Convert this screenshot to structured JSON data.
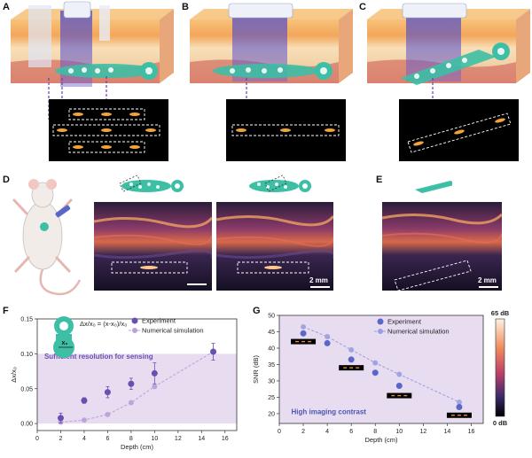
{
  "panels": {
    "A": "A",
    "B": "B",
    "C": "C",
    "D": "D",
    "E": "E",
    "F": "F",
    "G": "G"
  },
  "scale_bars": {
    "d1": "2 mm",
    "e1": "2 mm"
  },
  "colors": {
    "skin_top": "#f3b56a",
    "skin_mid": "#f7d9ad",
    "tissue": "#e9c6a6",
    "muscle": "#d7877a",
    "probe_beam": "#5b55c9",
    "patch": "#3dbfa5",
    "dashed_box": "#ffffff",
    "arrow": "#6a3fa6",
    "highlight_fill": "#e4d6ef",
    "experiment": "#6a4fb0",
    "simulation": "#b8a0d8",
    "snr_experiment": "#5b66c9",
    "snr_simulation": "#9a9ee0",
    "colorbar_top": "#fff0e0",
    "colorbar_mid": "#c0406a",
    "colorbar_bottom": "#000000"
  },
  "chart_data": [
    {
      "panel": "F",
      "type": "scatter",
      "xlabel": "Depth (cm)",
      "ylabel": "Δx/x₀",
      "xlim": [
        0,
        17
      ],
      "ylim": [
        -0.01,
        0.15
      ],
      "xticks": [
        "0",
        "2",
        "4",
        "6",
        "8",
        "10",
        "12",
        "14",
        "16"
      ],
      "yticks": [
        "0.00",
        "0.05",
        "0.10",
        "0.15"
      ],
      "formula": "Δx/x₀ = (x-x₀)/x₀",
      "inset_label": "x₀",
      "shaded_region_label": "Sufficient resolution for sensing",
      "shaded_region_y": [
        0,
        0.1
      ],
      "series": [
        {
          "name": "Experiment",
          "style": "marker",
          "x": [
            2,
            4,
            6,
            8,
            10,
            15
          ],
          "y": [
            0.008,
            0.033,
            0.045,
            0.057,
            0.072,
            0.103
          ],
          "err": [
            0.007,
            0.004,
            0.008,
            0.008,
            0.015,
            0.012
          ]
        },
        {
          "name": "Numerical simulation",
          "style": "dashed",
          "x": [
            2,
            4,
            6,
            8,
            10,
            15
          ],
          "y": [
            0.002,
            0.005,
            0.013,
            0.03,
            0.053,
            0.103
          ]
        }
      ]
    },
    {
      "panel": "G",
      "type": "scatter",
      "xlabel": "Depth (cm)",
      "ylabel": "SNR (dB)",
      "xlim": [
        0,
        17
      ],
      "ylim": [
        17,
        50
      ],
      "xticks": [
        "0",
        "2",
        "4",
        "6",
        "8",
        "10",
        "12",
        "14",
        "16"
      ],
      "yticks": [
        "20",
        "25",
        "30",
        "35",
        "40",
        "45",
        "50"
      ],
      "shaded_region_label": "High imaging contrast",
      "shaded_region_y": [
        17,
        50
      ],
      "colorbar": {
        "max_label": "65 dB",
        "min_label": "0 dB"
      },
      "series": [
        {
          "name": "Experiment",
          "style": "marker",
          "x": [
            2,
            4,
            6,
            8,
            10,
            15
          ],
          "y": [
            44.5,
            41.5,
            36.5,
            32.5,
            28.5,
            22.0
          ]
        },
        {
          "name": "Numerical simulation",
          "style": "dashed",
          "x": [
            2,
            4,
            6,
            8,
            10,
            15
          ],
          "y": [
            46.5,
            43.5,
            39.5,
            35.5,
            32.0,
            23.5
          ]
        }
      ]
    }
  ]
}
